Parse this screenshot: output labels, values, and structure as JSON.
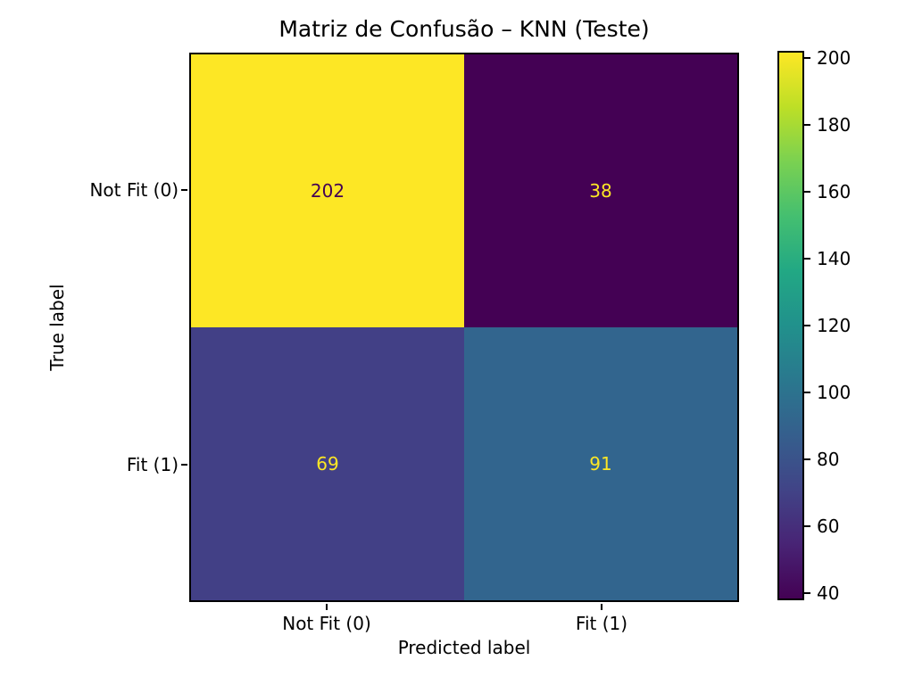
{
  "title": "Matriz de Confusão – KNN (Teste)",
  "chart_data": {
    "type": "heatmap",
    "title": "Matriz de Confusão – KNN (Teste)",
    "xlabel": "Predicted label",
    "ylabel": "True label",
    "x_tick_labels": [
      "Not Fit (0)",
      "Fit (1)"
    ],
    "y_tick_labels": [
      "Not Fit (0)",
      "Fit (1)"
    ],
    "matrix": [
      [
        202,
        38
      ],
      [
        69,
        91
      ]
    ],
    "cell_colors": [
      [
        "#fde725",
        "#440154"
      ],
      [
        "#424086",
        "#32658e"
      ]
    ],
    "cell_text_colors": [
      [
        "#440154",
        "#fde725"
      ],
      [
        "#fde725",
        "#fde725"
      ]
    ],
    "colormap": "viridis",
    "vmin": 38,
    "vmax": 202,
    "colorbar_ticks": [
      40,
      60,
      80,
      100,
      120,
      140,
      160,
      180,
      200
    ],
    "legend_position": "right-colorbar",
    "grid": false
  },
  "colors": {
    "background": "#ffffff",
    "text": "#000000",
    "spine": "#000000",
    "viridis_stops": [
      "#440154",
      "#482475",
      "#414487",
      "#355f8d",
      "#2a788e",
      "#21918c",
      "#22a884",
      "#44bf70",
      "#7ad151",
      "#bddf26",
      "#fde725"
    ]
  }
}
